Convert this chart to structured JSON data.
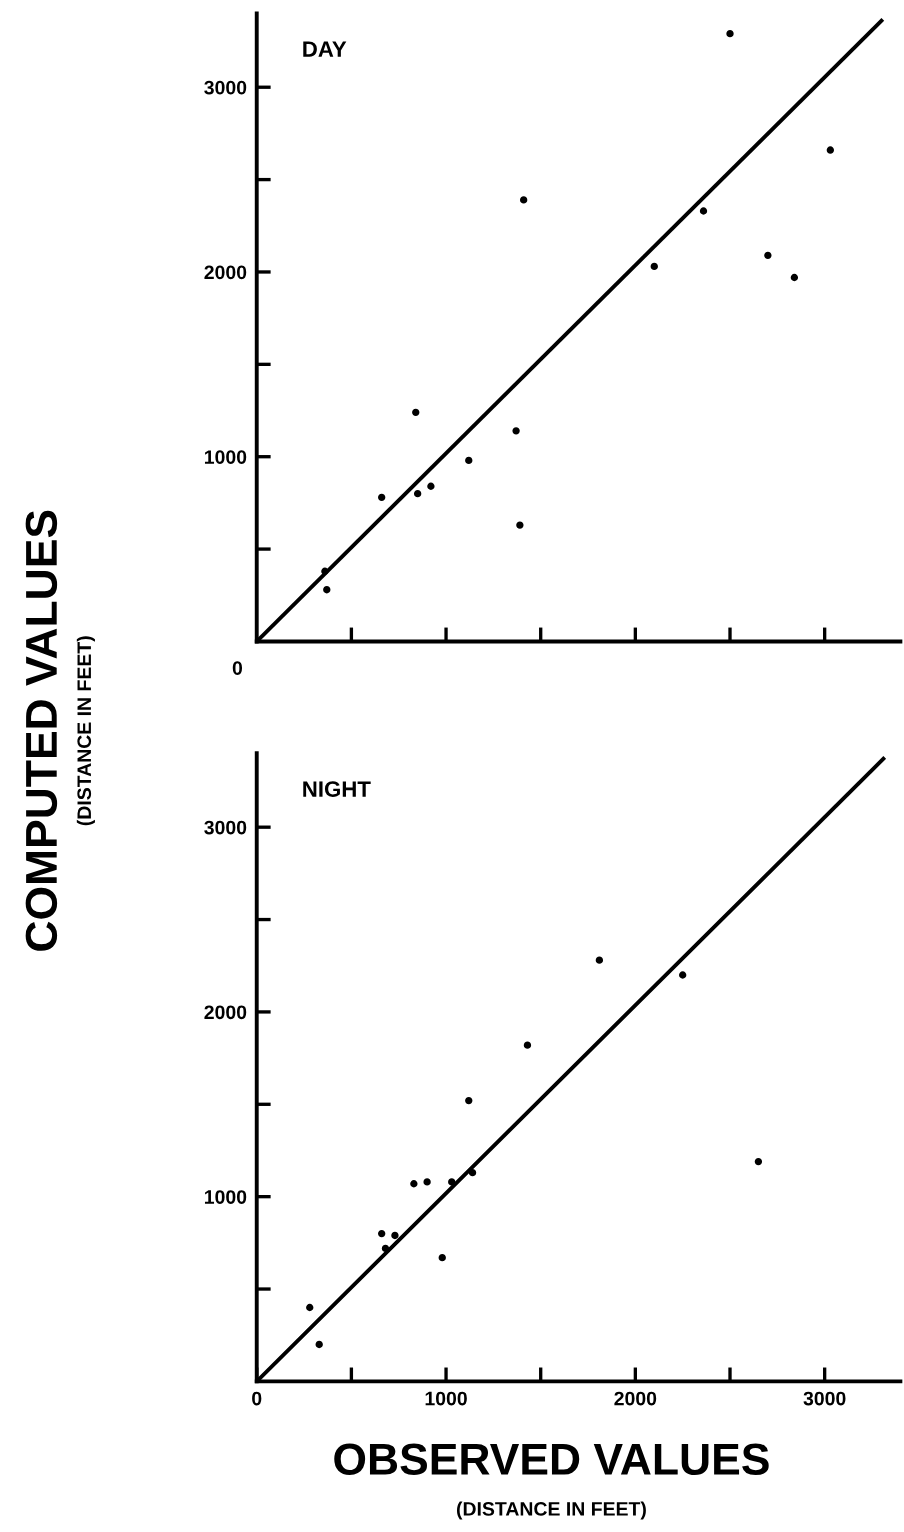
{
  "chart_data": [
    {
      "type": "scatter",
      "title": "DAY",
      "ylabel": "COMPUTED VALUES\n(DISTANCE IN FEET)",
      "grid": false,
      "legend": false,
      "tick_labels": "y",
      "annotations": [
        "0"
      ],
      "xlim": [
        0,
        3400
      ],
      "ylim": [
        0,
        3400
      ],
      "xticks": [
        {
          "value": 500,
          "label": null
        },
        {
          "value": 1000,
          "label": null
        },
        {
          "value": 1500,
          "label": null
        },
        {
          "value": 2000,
          "label": null
        },
        {
          "value": 2500,
          "label": null
        },
        {
          "value": 3000,
          "label": null
        }
      ],
      "yticks": [
        {
          "value": 500,
          "label": null
        },
        1000,
        {
          "value": 1500,
          "label": null
        },
        2000,
        {
          "value": 2500,
          "label": null
        },
        3000
      ],
      "series": [
        {
          "marker": "circle",
          "color": "#000000",
          "x": [
            360,
            370,
            660,
            840,
            850,
            920,
            1120,
            1370,
            1390,
            1410,
            2100,
            2360,
            2500,
            2700,
            2840,
            3030
          ],
          "values": [
            380,
            280,
            780,
            1240,
            800,
            840,
            980,
            1140,
            630,
            2390,
            2030,
            2330,
            3290,
            2090,
            1970,
            2660
          ]
        },
        {
          "type": "line",
          "marker": "none",
          "color": "#000000",
          "line_style": "solid",
          "x": [
            0,
            3300
          ],
          "values": [
            0,
            3360
          ]
        }
      ]
    },
    {
      "type": "scatter",
      "title": "NIGHT",
      "xlabel": "OBSERVED VALUES\n(DISTANCE IN FEET)",
      "grid": false,
      "legend": false,
      "xlim": [
        0,
        3400
      ],
      "ylim": [
        0,
        3400
      ],
      "xticks": [
        0,
        {
          "value": 500,
          "label": null
        },
        1000,
        {
          "value": 1500,
          "label": null
        },
        2000,
        {
          "value": 2500,
          "label": null
        },
        3000
      ],
      "yticks": [
        {
          "value": 500,
          "label": null
        },
        1000,
        {
          "value": 1500,
          "label": null
        },
        2000,
        {
          "value": 2500,
          "label": null
        },
        3000
      ],
      "series": [
        {
          "marker": "circle",
          "color": "#000000",
          "x": [
            280,
            330,
            660,
            680,
            730,
            830,
            900,
            980,
            1030,
            1120,
            1140,
            1430,
            1810,
            2250,
            2650
          ],
          "values": [
            400,
            200,
            800,
            720,
            790,
            1070,
            1080,
            670,
            1080,
            1520,
            1130,
            1820,
            2280,
            2200,
            1190
          ]
        },
        {
          "type": "line",
          "marker": "none",
          "color": "#000000",
          "line_style": "solid",
          "x": [
            0,
            3310
          ],
          "values": [
            0,
            3370
          ]
        }
      ]
    }
  ]
}
